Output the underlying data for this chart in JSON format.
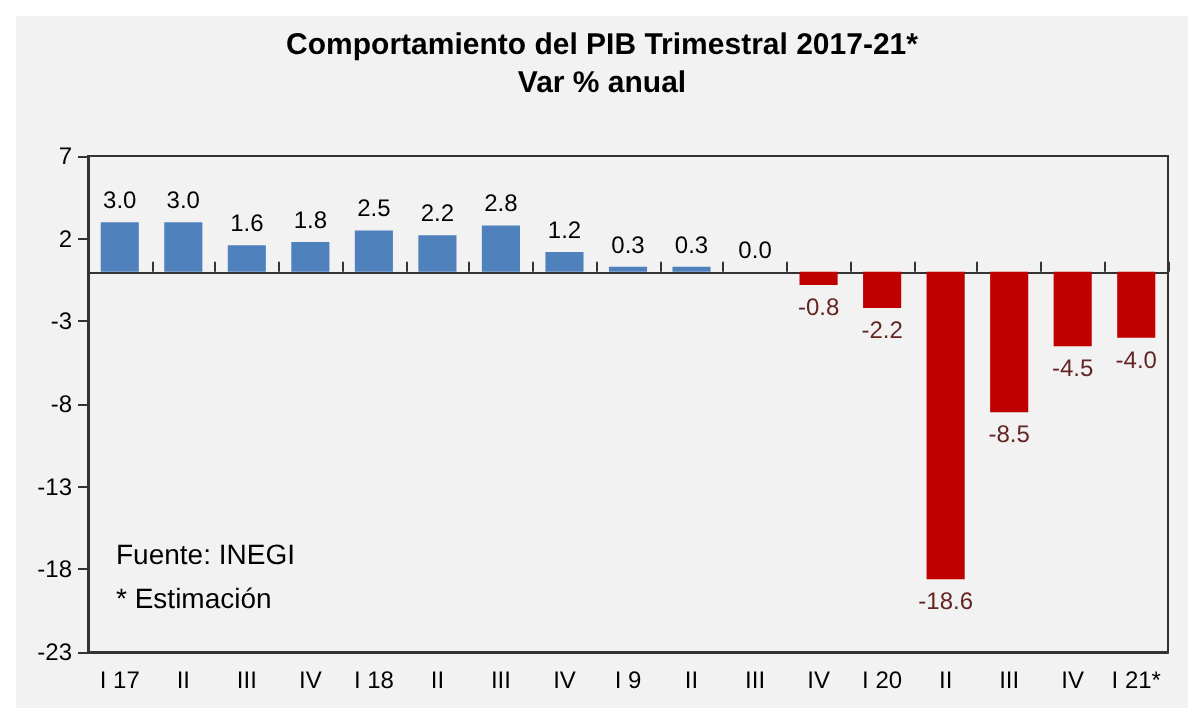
{
  "chart_data": {
    "type": "bar",
    "title": "Comportamiento del PIB Trimestral 2017-21*",
    "subtitle": "Var % anual",
    "categories": [
      "I 17",
      "II",
      "III",
      "IV",
      "I 18",
      "II",
      "III",
      "IV",
      "I 9",
      "II",
      "III",
      "IV",
      "I 20",
      "II",
      "III",
      "IV",
      "I 21*"
    ],
    "values": [
      3.0,
      3.0,
      1.6,
      1.8,
      2.5,
      2.2,
      2.8,
      1.2,
      0.3,
      0.3,
      0.0,
      -0.8,
      -2.2,
      -18.6,
      -8.5,
      -4.5,
      -4.0
    ],
    "value_labels": [
      "3.0",
      "3.0",
      "1.6",
      "1.8",
      "2.5",
      "2.2",
      "2.8",
      "1.2",
      "0.3",
      "0.3",
      "0.0",
      "-0.8",
      "-2.2",
      "-18.6",
      "-8.5",
      "-4.5",
      "-4.0"
    ],
    "colors": [
      "#4f81bd",
      "#4f81bd",
      "#4f81bd",
      "#4f81bd",
      "#4f81bd",
      "#4f81bd",
      "#4f81bd",
      "#4f81bd",
      "#4f81bd",
      "#4f81bd",
      "#4f81bd",
      "#c00000",
      "#c00000",
      "#c00000",
      "#c00000",
      "#c00000",
      "#c00000"
    ],
    "ylim": [
      -23,
      7
    ],
    "yticks": [
      -23,
      -18,
      -13,
      -8,
      -3,
      2,
      7
    ],
    "grid": false,
    "annotations": [
      "Fuente: INEGI",
      "* Estimación"
    ]
  }
}
